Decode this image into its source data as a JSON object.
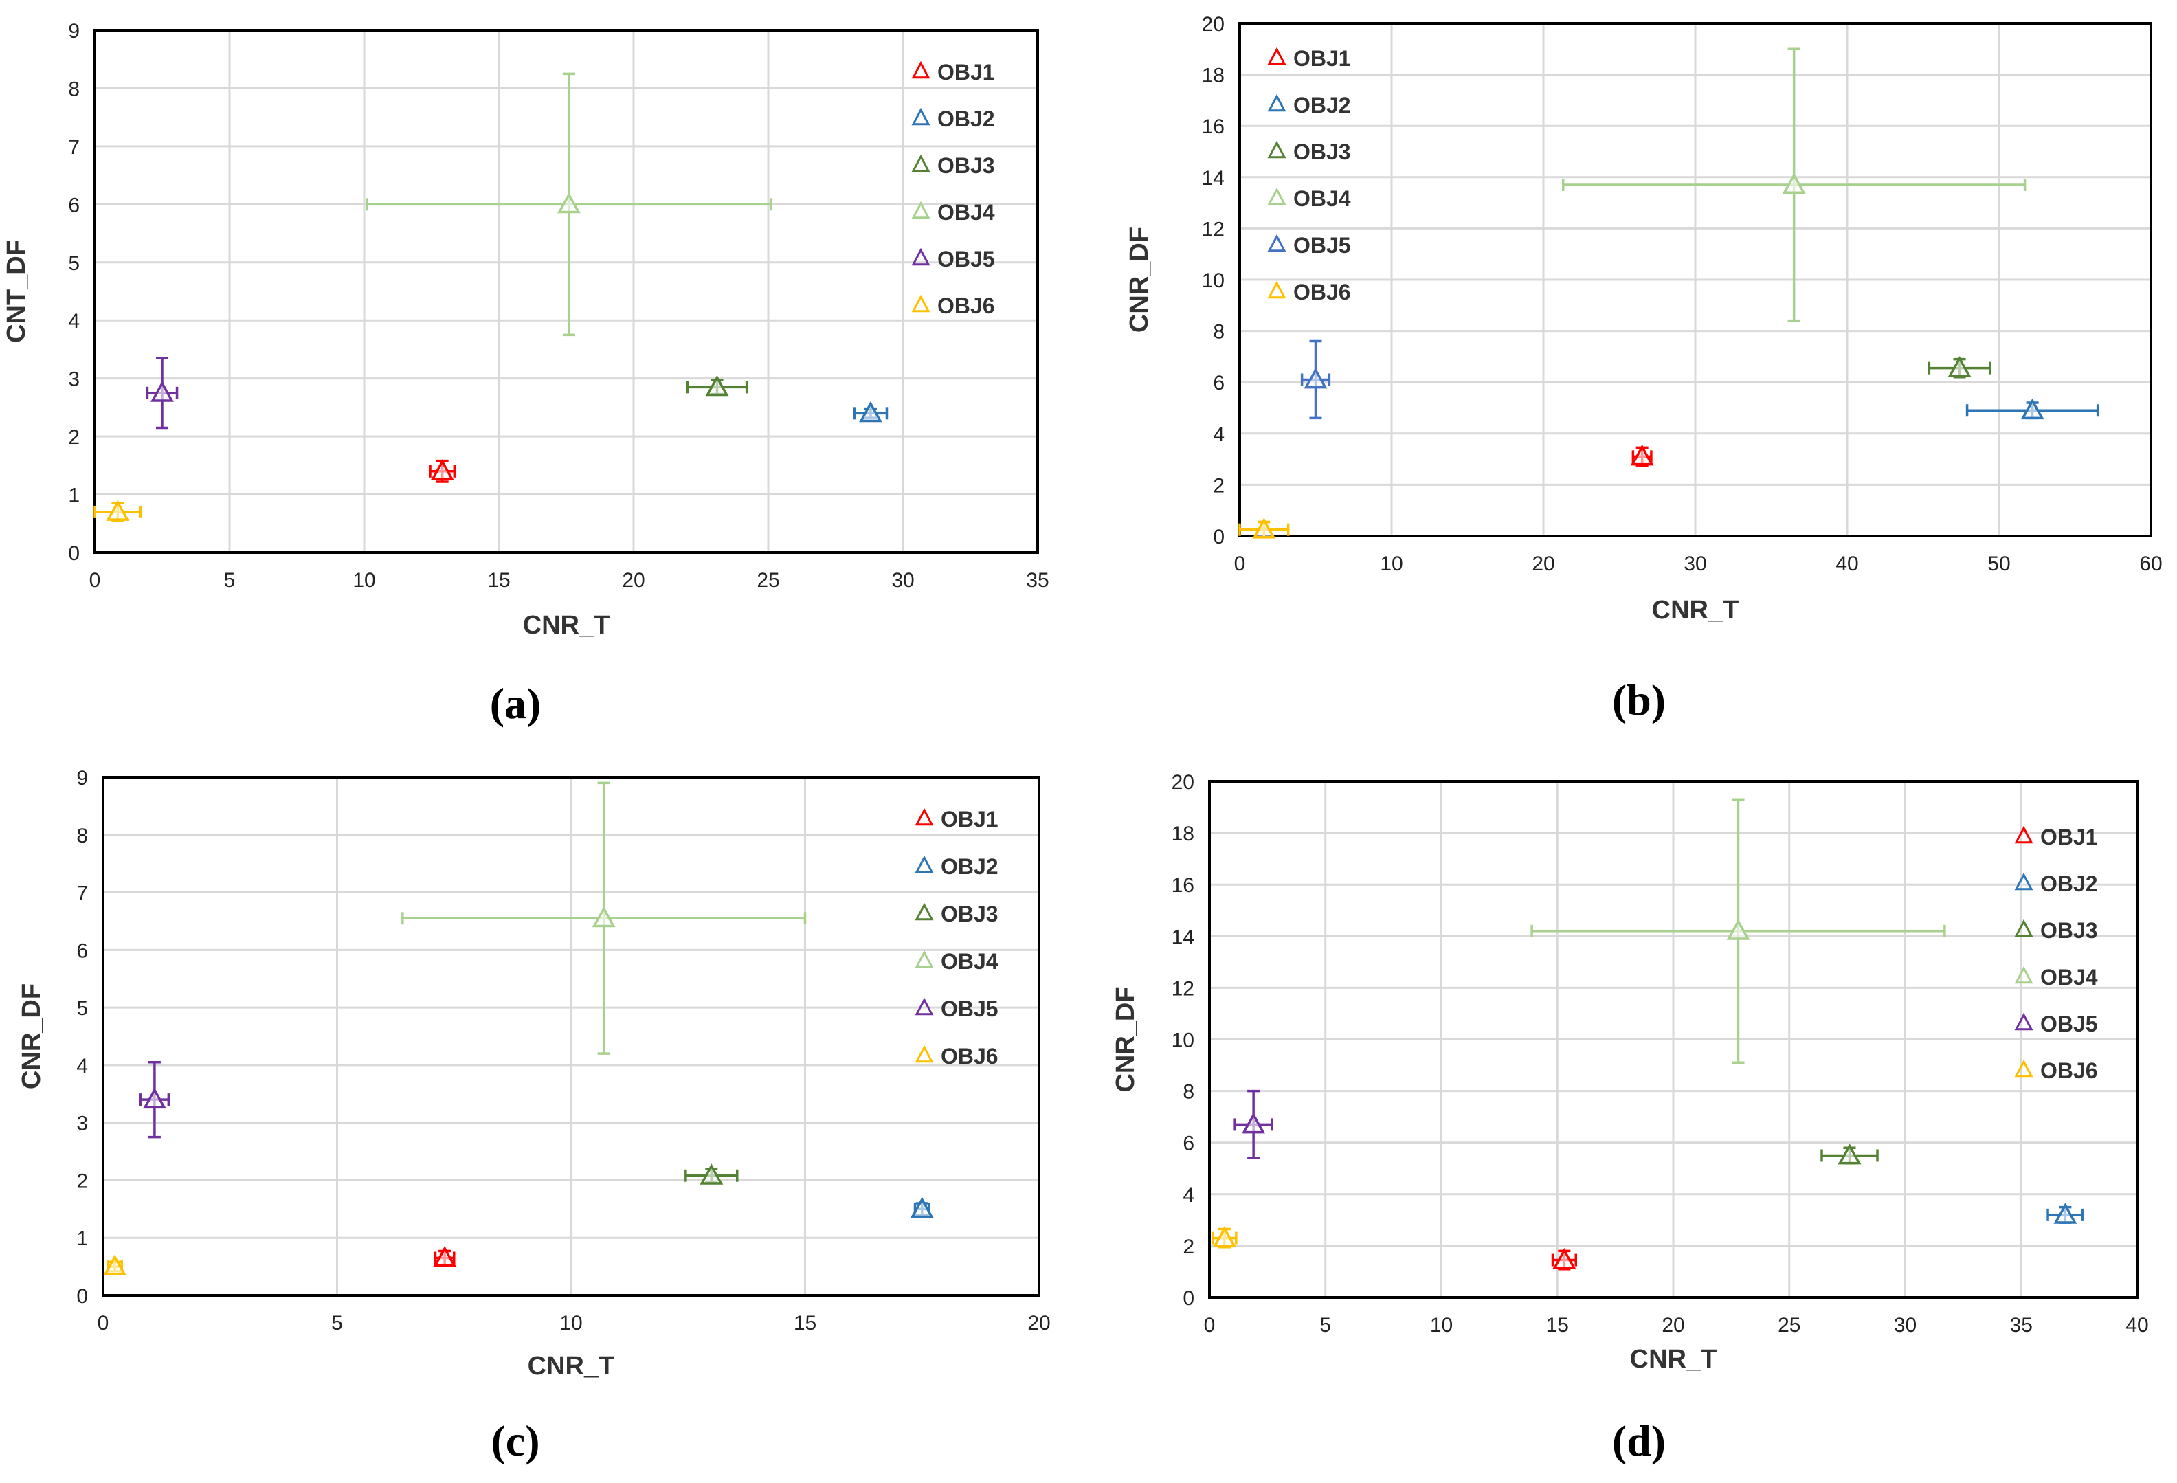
{
  "figure": {
    "description_free": true
  },
  "chart_data": [
    {
      "type": "scatter",
      "panel_label": "(a)",
      "xlabel": "CNR_T",
      "ylabel": "CNT_DF",
      "xlim": [
        0,
        35
      ],
      "ylim": [
        0,
        9
      ],
      "xticks": [
        0,
        5,
        10,
        15,
        20,
        25,
        30,
        35
      ],
      "yticks": [
        0,
        1,
        2,
        3,
        4,
        5,
        6,
        7,
        8,
        9
      ],
      "legend_placement": "top-right",
      "series": [
        {
          "name": "OBJ1",
          "color": "#ff0000",
          "x": 12.9,
          "y": 1.4,
          "x_err": 0.45,
          "y_err": 0.18
        },
        {
          "name": "OBJ2",
          "color": "#2e75b6",
          "x": 28.8,
          "y": 2.4,
          "x_err": 0.6,
          "y_err": 0.08
        },
        {
          "name": "OBJ3",
          "color": "#548235",
          "x": 23.1,
          "y": 2.85,
          "x_err": 1.1,
          "y_err": 0.12
        },
        {
          "name": "OBJ4",
          "color": "#a9d18e",
          "x": 17.6,
          "y": 6.0,
          "x_err": 7.5,
          "y_err": 2.25
        },
        {
          "name": "OBJ5",
          "color": "#7030a0",
          "x": 2.5,
          "y": 2.75,
          "x_err": 0.55,
          "y_err": 0.6
        },
        {
          "name": "OBJ6",
          "color": "#ffc000",
          "x": 0.85,
          "y": 0.7,
          "x_err": 0.85,
          "y_err": 0.15
        }
      ]
    },
    {
      "type": "scatter",
      "panel_label": "(b)",
      "xlabel": "CNR_T",
      "ylabel": "CNR_DF",
      "xlim": [
        0,
        60
      ],
      "ylim": [
        0,
        20
      ],
      "xticks": [
        0,
        10,
        20,
        30,
        40,
        50,
        60
      ],
      "yticks": [
        0,
        2,
        4,
        6,
        8,
        10,
        12,
        14,
        16,
        18,
        20
      ],
      "legend_placement": "top-left",
      "series": [
        {
          "name": "OBJ1",
          "color": "#ff0000",
          "x": 26.5,
          "y": 3.1,
          "x_err": 0.6,
          "y_err": 0.35
        },
        {
          "name": "OBJ2",
          "color": "#2e75b6",
          "x": 52.2,
          "y": 4.9,
          "x_err": 4.3,
          "y_err": 0.3
        },
        {
          "name": "OBJ3",
          "color": "#548235",
          "x": 47.4,
          "y": 6.55,
          "x_err": 2.0,
          "y_err": 0.35
        },
        {
          "name": "OBJ4",
          "color": "#a9d18e",
          "x": 36.5,
          "y": 13.7,
          "x_err": 15.2,
          "y_err": 5.3
        },
        {
          "name": "OBJ5",
          "color": "#4472c4",
          "x": 5.0,
          "y": 6.1,
          "x_err": 0.9,
          "y_err": 1.5
        },
        {
          "name": "OBJ6",
          "color": "#ffc000",
          "x": 1.6,
          "y": 0.25,
          "x_err": 1.6,
          "y_err": 0.3
        }
      ]
    },
    {
      "type": "scatter",
      "panel_label": "(c)",
      "xlabel": "CNR_T",
      "ylabel": "CNR_DF",
      "xlim": [
        0,
        20
      ],
      "ylim": [
        0,
        9
      ],
      "xticks": [
        0,
        5,
        10,
        15,
        20
      ],
      "yticks": [
        0,
        1,
        2,
        3,
        4,
        5,
        6,
        7,
        8,
        9
      ],
      "legend_placement": "top-right",
      "series": [
        {
          "name": "OBJ1",
          "color": "#ff0000",
          "x": 7.3,
          "y": 0.65,
          "x_err": 0.2,
          "y_err": 0.12
        },
        {
          "name": "OBJ2",
          "color": "#2e75b6",
          "x": 17.5,
          "y": 1.5,
          "x_err": 0.15,
          "y_err": 0.1
        },
        {
          "name": "OBJ3",
          "color": "#548235",
          "x": 13.0,
          "y": 2.08,
          "x_err": 0.55,
          "y_err": 0.12
        },
        {
          "name": "OBJ4",
          "color": "#a9d18e",
          "x": 10.7,
          "y": 6.55,
          "x_err": 4.3,
          "y_err": 2.35
        },
        {
          "name": "OBJ5",
          "color": "#7030a0",
          "x": 1.1,
          "y": 3.4,
          "x_err": 0.3,
          "y_err": 0.65
        },
        {
          "name": "OBJ6",
          "color": "#ffc000",
          "x": 0.25,
          "y": 0.5,
          "x_err": 0.15,
          "y_err": 0.08
        }
      ]
    },
    {
      "type": "scatter",
      "panel_label": "(d)",
      "xlabel": "CNR_T",
      "ylabel": "CNR_DF",
      "xlim": [
        0,
        40
      ],
      "ylim": [
        0,
        20
      ],
      "xticks": [
        0,
        5,
        10,
        15,
        20,
        25,
        30,
        35,
        40
      ],
      "yticks": [
        0,
        2,
        4,
        6,
        8,
        10,
        12,
        14,
        16,
        18,
        20
      ],
      "legend_placement": "top-right",
      "series": [
        {
          "name": "OBJ1",
          "color": "#ff0000",
          "x": 15.3,
          "y": 1.45,
          "x_err": 0.5,
          "y_err": 0.35
        },
        {
          "name": "OBJ2",
          "color": "#2e75b6",
          "x": 36.9,
          "y": 3.2,
          "x_err": 0.75,
          "y_err": 0.3
        },
        {
          "name": "OBJ3",
          "color": "#548235",
          "x": 27.6,
          "y": 5.5,
          "x_err": 1.2,
          "y_err": 0.3
        },
        {
          "name": "OBJ4",
          "color": "#a9d18e",
          "x": 22.8,
          "y": 14.2,
          "x_err": 8.9,
          "y_err": 5.1
        },
        {
          "name": "OBJ5",
          "color": "#7030a0",
          "x": 1.9,
          "y": 6.7,
          "x_err": 0.8,
          "y_err": 1.3
        },
        {
          "name": "OBJ6",
          "color": "#ffc000",
          "x": 0.65,
          "y": 2.3,
          "x_err": 0.5,
          "y_err": 0.35
        }
      ]
    }
  ]
}
